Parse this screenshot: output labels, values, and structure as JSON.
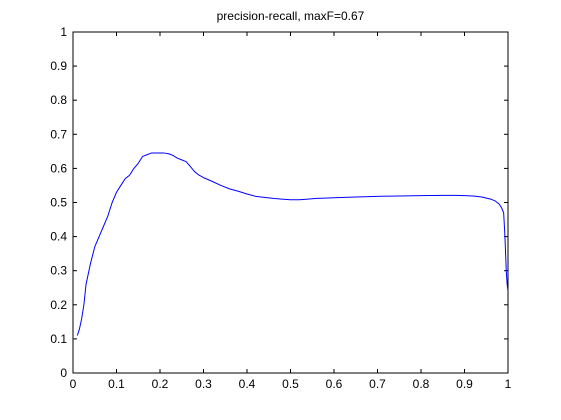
{
  "chart_data": {
    "type": "line",
    "title": "precision-recall, maxF=0.67",
    "xlabel": "",
    "ylabel": "",
    "xlim": [
      0,
      1
    ],
    "ylim": [
      0,
      1
    ],
    "x_ticks": [
      "0",
      "0.1",
      "0.2",
      "0.3",
      "0.4",
      "0.5",
      "0.6",
      "0.7",
      "0.8",
      "0.9",
      "1"
    ],
    "y_ticks": [
      "0",
      "0.1",
      "0.2",
      "0.3",
      "0.4",
      "0.5",
      "0.6",
      "0.7",
      "0.8",
      "0.9",
      "1"
    ],
    "grid": false,
    "series": [
      {
        "color": "#0000ff",
        "x": [
          0.01,
          0.015,
          0.02,
          0.025,
          0.03,
          0.04,
          0.05,
          0.06,
          0.07,
          0.08,
          0.09,
          0.1,
          0.11,
          0.12,
          0.13,
          0.14,
          0.15,
          0.16,
          0.17,
          0.18,
          0.19,
          0.2,
          0.21,
          0.22,
          0.23,
          0.24,
          0.25,
          0.26,
          0.27,
          0.28,
          0.29,
          0.3,
          0.32,
          0.34,
          0.36,
          0.38,
          0.4,
          0.42,
          0.44,
          0.46,
          0.48,
          0.5,
          0.52,
          0.54,
          0.56,
          0.58,
          0.6,
          0.65,
          0.7,
          0.75,
          0.8,
          0.85,
          0.88,
          0.9,
          0.92,
          0.94,
          0.96,
          0.97,
          0.98,
          0.985,
          0.99,
          0.993,
          0.996,
          0.998,
          1.0
        ],
        "y": [
          0.11,
          0.13,
          0.16,
          0.2,
          0.26,
          0.32,
          0.37,
          0.4,
          0.43,
          0.46,
          0.5,
          0.53,
          0.55,
          0.57,
          0.58,
          0.6,
          0.615,
          0.635,
          0.64,
          0.645,
          0.645,
          0.645,
          0.645,
          0.643,
          0.638,
          0.63,
          0.625,
          0.62,
          0.605,
          0.59,
          0.58,
          0.573,
          0.562,
          0.55,
          0.54,
          0.533,
          0.525,
          0.518,
          0.515,
          0.512,
          0.51,
          0.508,
          0.508,
          0.51,
          0.512,
          0.513,
          0.514,
          0.516,
          0.518,
          0.519,
          0.52,
          0.521,
          0.521,
          0.52,
          0.519,
          0.516,
          0.51,
          0.505,
          0.495,
          0.485,
          0.47,
          0.4,
          0.3,
          0.26,
          0.24
        ]
      }
    ]
  }
}
